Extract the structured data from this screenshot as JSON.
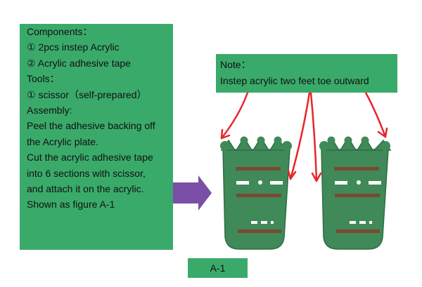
{
  "instructions": {
    "lines": [
      "Components：",
      "① 2pcs instep Acrylic",
      "② Acrylic adhesive tape",
      "Tools：",
      "① scissor（self-prepared）",
      "Assembly:",
      "Peel the adhesive backing off",
      "the Acrylic plate.",
      "Cut the acrylic adhesive tape",
      "into 6 sections with scissor,",
      "and attach it on the acrylic.",
      "Shown as figure A-1"
    ]
  },
  "note": {
    "title": "Note：",
    "text": "Instep acrylic two feet toe outward"
  },
  "figure": {
    "label": "A-1"
  },
  "colors": {
    "panel_green": "#3aaa6a",
    "plate_green": "#3f8a58",
    "plate_dark": "#2f6e45",
    "tape_brown": "#7a4a30",
    "arrow_purple": "#7b4fa8",
    "annotation_red": "#e8252a"
  }
}
